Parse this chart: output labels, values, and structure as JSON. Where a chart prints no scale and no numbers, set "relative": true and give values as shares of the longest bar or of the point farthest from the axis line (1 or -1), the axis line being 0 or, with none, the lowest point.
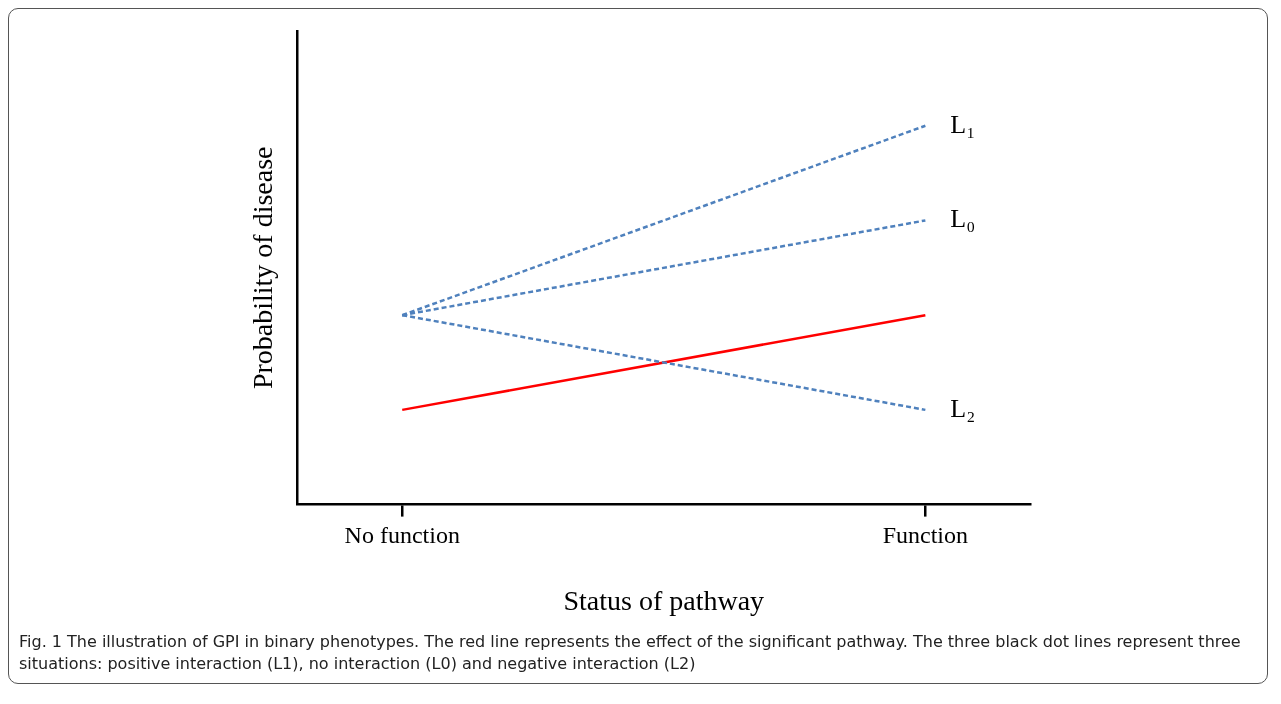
{
  "chart_data": {
    "type": "line",
    "relative": true,
    "xlabel": "Status of pathway",
    "ylabel": "Probability of disease",
    "categories": [
      "No function",
      "Function"
    ],
    "legend": false,
    "grid": false,
    "marker": "none",
    "series": [
      {
        "name": "L₁",
        "color": "#4f81bd",
        "line_style": "dashed",
        "values": [
          0.5,
          1
        ]
      },
      {
        "name": "L₀",
        "color": "#4f81bd",
        "line_style": "dashed",
        "values": [
          0.5,
          0.75
        ]
      },
      {
        "name": "L₂",
        "color": "#4f81bd",
        "line_style": "dashed",
        "values": [
          0.5,
          0.25
        ]
      },
      {
        "color": "#ff0000",
        "line_style": "solid",
        "values": [
          0.25,
          0.5
        ]
      }
    ],
    "annotations": [
      "Fig. 1 The illustration of GPI in binary phenotypes. The red line represents the effect of the significant pathway. The three black dot lines represent three situations: positive interaction (L1), no interaction (L0) and negative interaction (L2)"
    ]
  }
}
